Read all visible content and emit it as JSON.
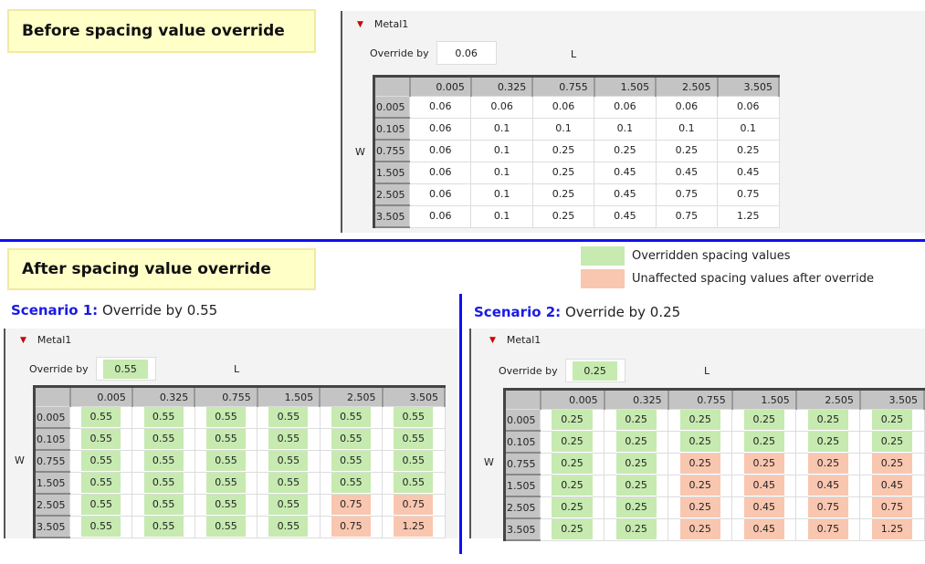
{
  "before": {
    "label": "Before spacing value override",
    "metal": "Metal1",
    "override_label": "Override by",
    "override_value": "0.06",
    "l_label": "L",
    "w_label": "W",
    "cols": [
      "0.005",
      "0.325",
      "0.755",
      "1.505",
      "2.505",
      "3.505"
    ],
    "rows": [
      {
        "h": "0.005",
        "v": [
          "0.06",
          "0.06",
          "0.06",
          "0.06",
          "0.06",
          "0.06"
        ],
        "s": [
          "",
          "",
          "",
          "",
          "",
          ""
        ]
      },
      {
        "h": "0.105",
        "v": [
          "0.06",
          "0.1",
          "0.1",
          "0.1",
          "0.1",
          "0.1"
        ],
        "s": [
          "",
          "",
          "",
          "",
          "",
          ""
        ]
      },
      {
        "h": "0.755",
        "v": [
          "0.06",
          "0.1",
          "0.25",
          "0.25",
          "0.25",
          "0.25"
        ],
        "s": [
          "",
          "",
          "",
          "",
          "",
          ""
        ]
      },
      {
        "h": "1.505",
        "v": [
          "0.06",
          "0.1",
          "0.25",
          "0.45",
          "0.45",
          "0.45"
        ],
        "s": [
          "",
          "",
          "",
          "",
          "",
          ""
        ]
      },
      {
        "h": "2.505",
        "v": [
          "0.06",
          "0.1",
          "0.25",
          "0.45",
          "0.75",
          "0.75"
        ],
        "s": [
          "",
          "",
          "",
          "",
          "",
          ""
        ]
      },
      {
        "h": "3.505",
        "v": [
          "0.06",
          "0.1",
          "0.25",
          "0.45",
          "0.75",
          "1.25"
        ],
        "s": [
          "",
          "",
          "",
          "",
          "",
          ""
        ]
      }
    ]
  },
  "after_label": "After spacing value override",
  "legend": {
    "overridden": "Overridden spacing values",
    "unaffected": "Unaffected spacing values after override",
    "overridden_color": "#c6eab0",
    "unaffected_color": "#f9c6b0"
  },
  "s1": {
    "title": "Scenario 1:",
    "desc": "Override by 0.55",
    "metal": "Metal1",
    "override_label": "Override by",
    "override_value": "0.55",
    "l_label": "L",
    "w_label": "W",
    "cols": [
      "0.005",
      "0.325",
      "0.755",
      "1.505",
      "2.505",
      "3.505"
    ],
    "rows": [
      {
        "h": "0.005",
        "v": [
          "0.55",
          "0.55",
          "0.55",
          "0.55",
          "0.55",
          "0.55"
        ],
        "s": [
          "g",
          "g",
          "g",
          "g",
          "g",
          "g"
        ]
      },
      {
        "h": "0.105",
        "v": [
          "0.55",
          "0.55",
          "0.55",
          "0.55",
          "0.55",
          "0.55"
        ],
        "s": [
          "g",
          "g",
          "g",
          "g",
          "g",
          "g"
        ]
      },
      {
        "h": "0.755",
        "v": [
          "0.55",
          "0.55",
          "0.55",
          "0.55",
          "0.55",
          "0.55"
        ],
        "s": [
          "g",
          "g",
          "g",
          "g",
          "g",
          "g"
        ]
      },
      {
        "h": "1.505",
        "v": [
          "0.55",
          "0.55",
          "0.55",
          "0.55",
          "0.55",
          "0.55"
        ],
        "s": [
          "g",
          "g",
          "g",
          "g",
          "g",
          "g"
        ]
      },
      {
        "h": "2.505",
        "v": [
          "0.55",
          "0.55",
          "0.55",
          "0.55",
          "0.75",
          "0.75"
        ],
        "s": [
          "g",
          "g",
          "g",
          "g",
          "o",
          "o"
        ]
      },
      {
        "h": "3.505",
        "v": [
          "0.55",
          "0.55",
          "0.55",
          "0.55",
          "0.75",
          "1.25"
        ],
        "s": [
          "g",
          "g",
          "g",
          "g",
          "o",
          "o"
        ]
      }
    ]
  },
  "s2": {
    "title": "Scenario 2:",
    "desc": "Override by 0.25",
    "metal": "Metal1",
    "override_label": "Override by",
    "override_value": "0.25",
    "l_label": "L",
    "w_label": "W",
    "cols": [
      "0.005",
      "0.325",
      "0.755",
      "1.505",
      "2.505",
      "3.505"
    ],
    "rows": [
      {
        "h": "0.005",
        "v": [
          "0.25",
          "0.25",
          "0.25",
          "0.25",
          "0.25",
          "0.25"
        ],
        "s": [
          "g",
          "g",
          "g",
          "g",
          "g",
          "g"
        ]
      },
      {
        "h": "0.105",
        "v": [
          "0.25",
          "0.25",
          "0.25",
          "0.25",
          "0.25",
          "0.25"
        ],
        "s": [
          "g",
          "g",
          "g",
          "g",
          "g",
          "g"
        ]
      },
      {
        "h": "0.755",
        "v": [
          "0.25",
          "0.25",
          "0.25",
          "0.25",
          "0.25",
          "0.25"
        ],
        "s": [
          "g",
          "g",
          "o",
          "o",
          "o",
          "o"
        ]
      },
      {
        "h": "1.505",
        "v": [
          "0.25",
          "0.25",
          "0.25",
          "0.45",
          "0.45",
          "0.45"
        ],
        "s": [
          "g",
          "g",
          "o",
          "o",
          "o",
          "o"
        ]
      },
      {
        "h": "2.505",
        "v": [
          "0.25",
          "0.25",
          "0.25",
          "0.45",
          "0.75",
          "0.75"
        ],
        "s": [
          "g",
          "g",
          "o",
          "o",
          "o",
          "o"
        ]
      },
      {
        "h": "3.505",
        "v": [
          "0.25",
          "0.25",
          "0.25",
          "0.45",
          "0.75",
          "1.25"
        ],
        "s": [
          "g",
          "g",
          "o",
          "o",
          "o",
          "o"
        ]
      }
    ]
  }
}
